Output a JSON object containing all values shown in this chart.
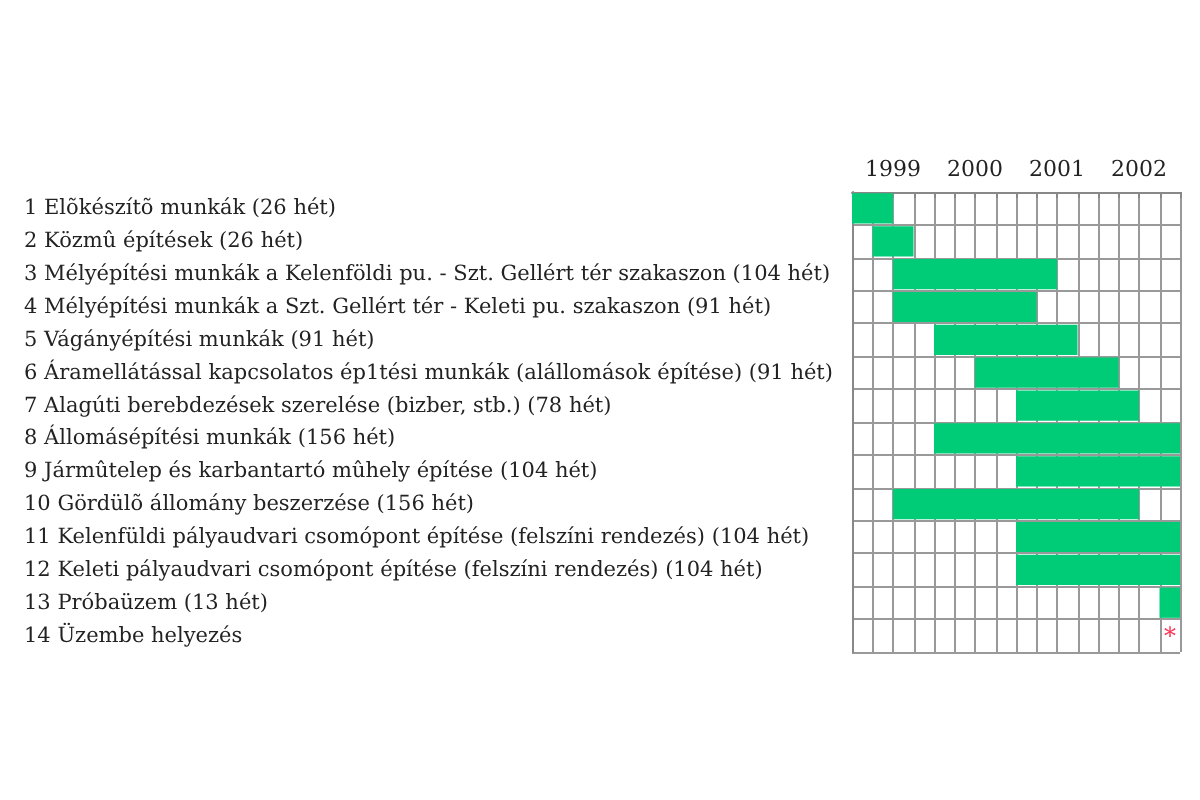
{
  "chart_data": {
    "type": "bar",
    "orientation": "horizontal",
    "categories": [
      "1 Elõkészítõ munkák (26 hét)",
      "2 Közmû építések (26 hét)",
      "3 Mélyépítési munkák a Kelenföldi pu. - Szt. Gellért tér szakaszon (104 hét)",
      "4 Mélyépítési munkák a Szt. Gellért tér - Keleti pu. szakaszon (91 hét)",
      "5 Vágányépítési munkák (91 hét)",
      "6 Áramellátással kapcsolatos ép1tési munkák (alállomások építése) (91 hét)",
      "7 Alagúti berebdezések szerelése (bizber, stb.) (78 hét)",
      "8 Állomásépítési munkák (156 hét)",
      "9 Jármûtelep és karbantartó mûhely építése (104 hét)",
      "10 Gördülõ állomány beszerzése (156 hét)",
      "11 Kelenfüldi pályaudvari csomópont építése (felszíni rendezés) (104 hét)",
      "12 Keleti pályaudvari csomópont építése (felszíni rendezés) (104 hét)",
      "13 Próbaüzem (13 hét)",
      "14 Üzembe helyezés"
    ],
    "base": [
      1999,
      1999.25,
      1999.5,
      1999.5,
      2000,
      2000.5,
      2001,
      2000,
      2001,
      1999.5,
      2001,
      2001,
      2002.75,
      null
    ],
    "values": [
      0.5,
      0.5,
      2,
      1.75,
      1.75,
      1.75,
      1.5,
      3,
      2,
      3,
      2,
      2,
      0.25,
      null
    ],
    "color": "#00cc77",
    "xlim": [
      1999,
      2003
    ],
    "xticks": [
      {
        "value": 1999,
        "label": null
      },
      {
        "value": 1999.25,
        "label": null
      },
      {
        "value": 1999.5,
        "label": "1999"
      },
      {
        "value": 1999.75,
        "label": null
      },
      {
        "value": 2000,
        "label": null
      },
      {
        "value": 2000.25,
        "label": null
      },
      {
        "value": 2000.5,
        "label": "2000"
      },
      {
        "value": 2000.75,
        "label": null
      },
      {
        "value": 2001,
        "label": null
      },
      {
        "value": 2001.25,
        "label": null
      },
      {
        "value": 2001.5,
        "label": "2001"
      },
      {
        "value": 2001.75,
        "label": null
      },
      {
        "value": 2002,
        "label": null
      },
      {
        "value": 2002.25,
        "label": null
      },
      {
        "value": 2002.5,
        "label": "2002"
      },
      {
        "value": 2002.75,
        "label": null
      },
      {
        "value": 2003,
        "label": null
      }
    ],
    "annotations": [
      "*"
    ],
    "grid": true
  }
}
